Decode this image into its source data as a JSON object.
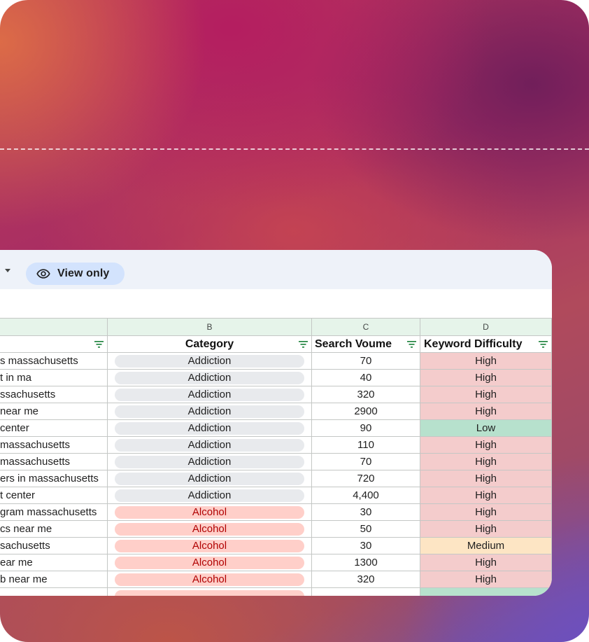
{
  "toolbar": {
    "view_only_label": "View only"
  },
  "columns": {
    "b": "B",
    "c": "C",
    "d": "D"
  },
  "headers": {
    "category": "Category",
    "search_volume": "Search Voume",
    "keyword_difficulty": "Keyword Difficulty"
  },
  "rows": [
    {
      "keyword": "s massachusetts",
      "category": "Addiction",
      "volume": "70",
      "difficulty": "High"
    },
    {
      "keyword": "t in ma",
      "category": "Addiction",
      "volume": "40",
      "difficulty": "High"
    },
    {
      "keyword": "ssachusetts",
      "category": "Addiction",
      "volume": "320",
      "difficulty": "High"
    },
    {
      "keyword": "near me",
      "category": "Addiction",
      "volume": "2900",
      "difficulty": "High"
    },
    {
      "keyword": " center",
      "category": "Addiction",
      "volume": "90",
      "difficulty": "Low"
    },
    {
      "keyword": " massachusetts",
      "category": "Addiction",
      "volume": "110",
      "difficulty": "High"
    },
    {
      "keyword": " massachusetts",
      "category": "Addiction",
      "volume": "70",
      "difficulty": "High"
    },
    {
      "keyword": "ers in massachusetts",
      "category": "Addiction",
      "volume": "720",
      "difficulty": "High"
    },
    {
      "keyword": "t center",
      "category": "Addiction",
      "volume": "4,400",
      "difficulty": "High"
    },
    {
      "keyword": "gram massachusetts",
      "category": "Alcohol",
      "volume": "30",
      "difficulty": "High"
    },
    {
      "keyword": "cs near me",
      "category": "Alcohol",
      "volume": "50",
      "difficulty": "High"
    },
    {
      "keyword": "sachusetts",
      "category": "Alcohol",
      "volume": "30",
      "difficulty": "Medium"
    },
    {
      "keyword": "ear me",
      "category": "Alcohol",
      "volume": "1300",
      "difficulty": "High"
    },
    {
      "keyword": "b near me",
      "category": "Alcohol",
      "volume": "320",
      "difficulty": "High"
    }
  ],
  "colors": {
    "addiction_chip": "#e8eaed",
    "alcohol_chip": "#ffcfc9",
    "alcohol_text": "#b10202",
    "high": "#f4cccc",
    "low": "#b7e1cd",
    "medium": "#fde5c4",
    "header_bg": "#e6f4ea",
    "toolbar_bg": "#eef2f9",
    "view_only_bg": "#d3e3fd"
  },
  "icons": {
    "caret": "caret-down-icon",
    "eye": "eye-icon",
    "filter": "filter-icon"
  }
}
